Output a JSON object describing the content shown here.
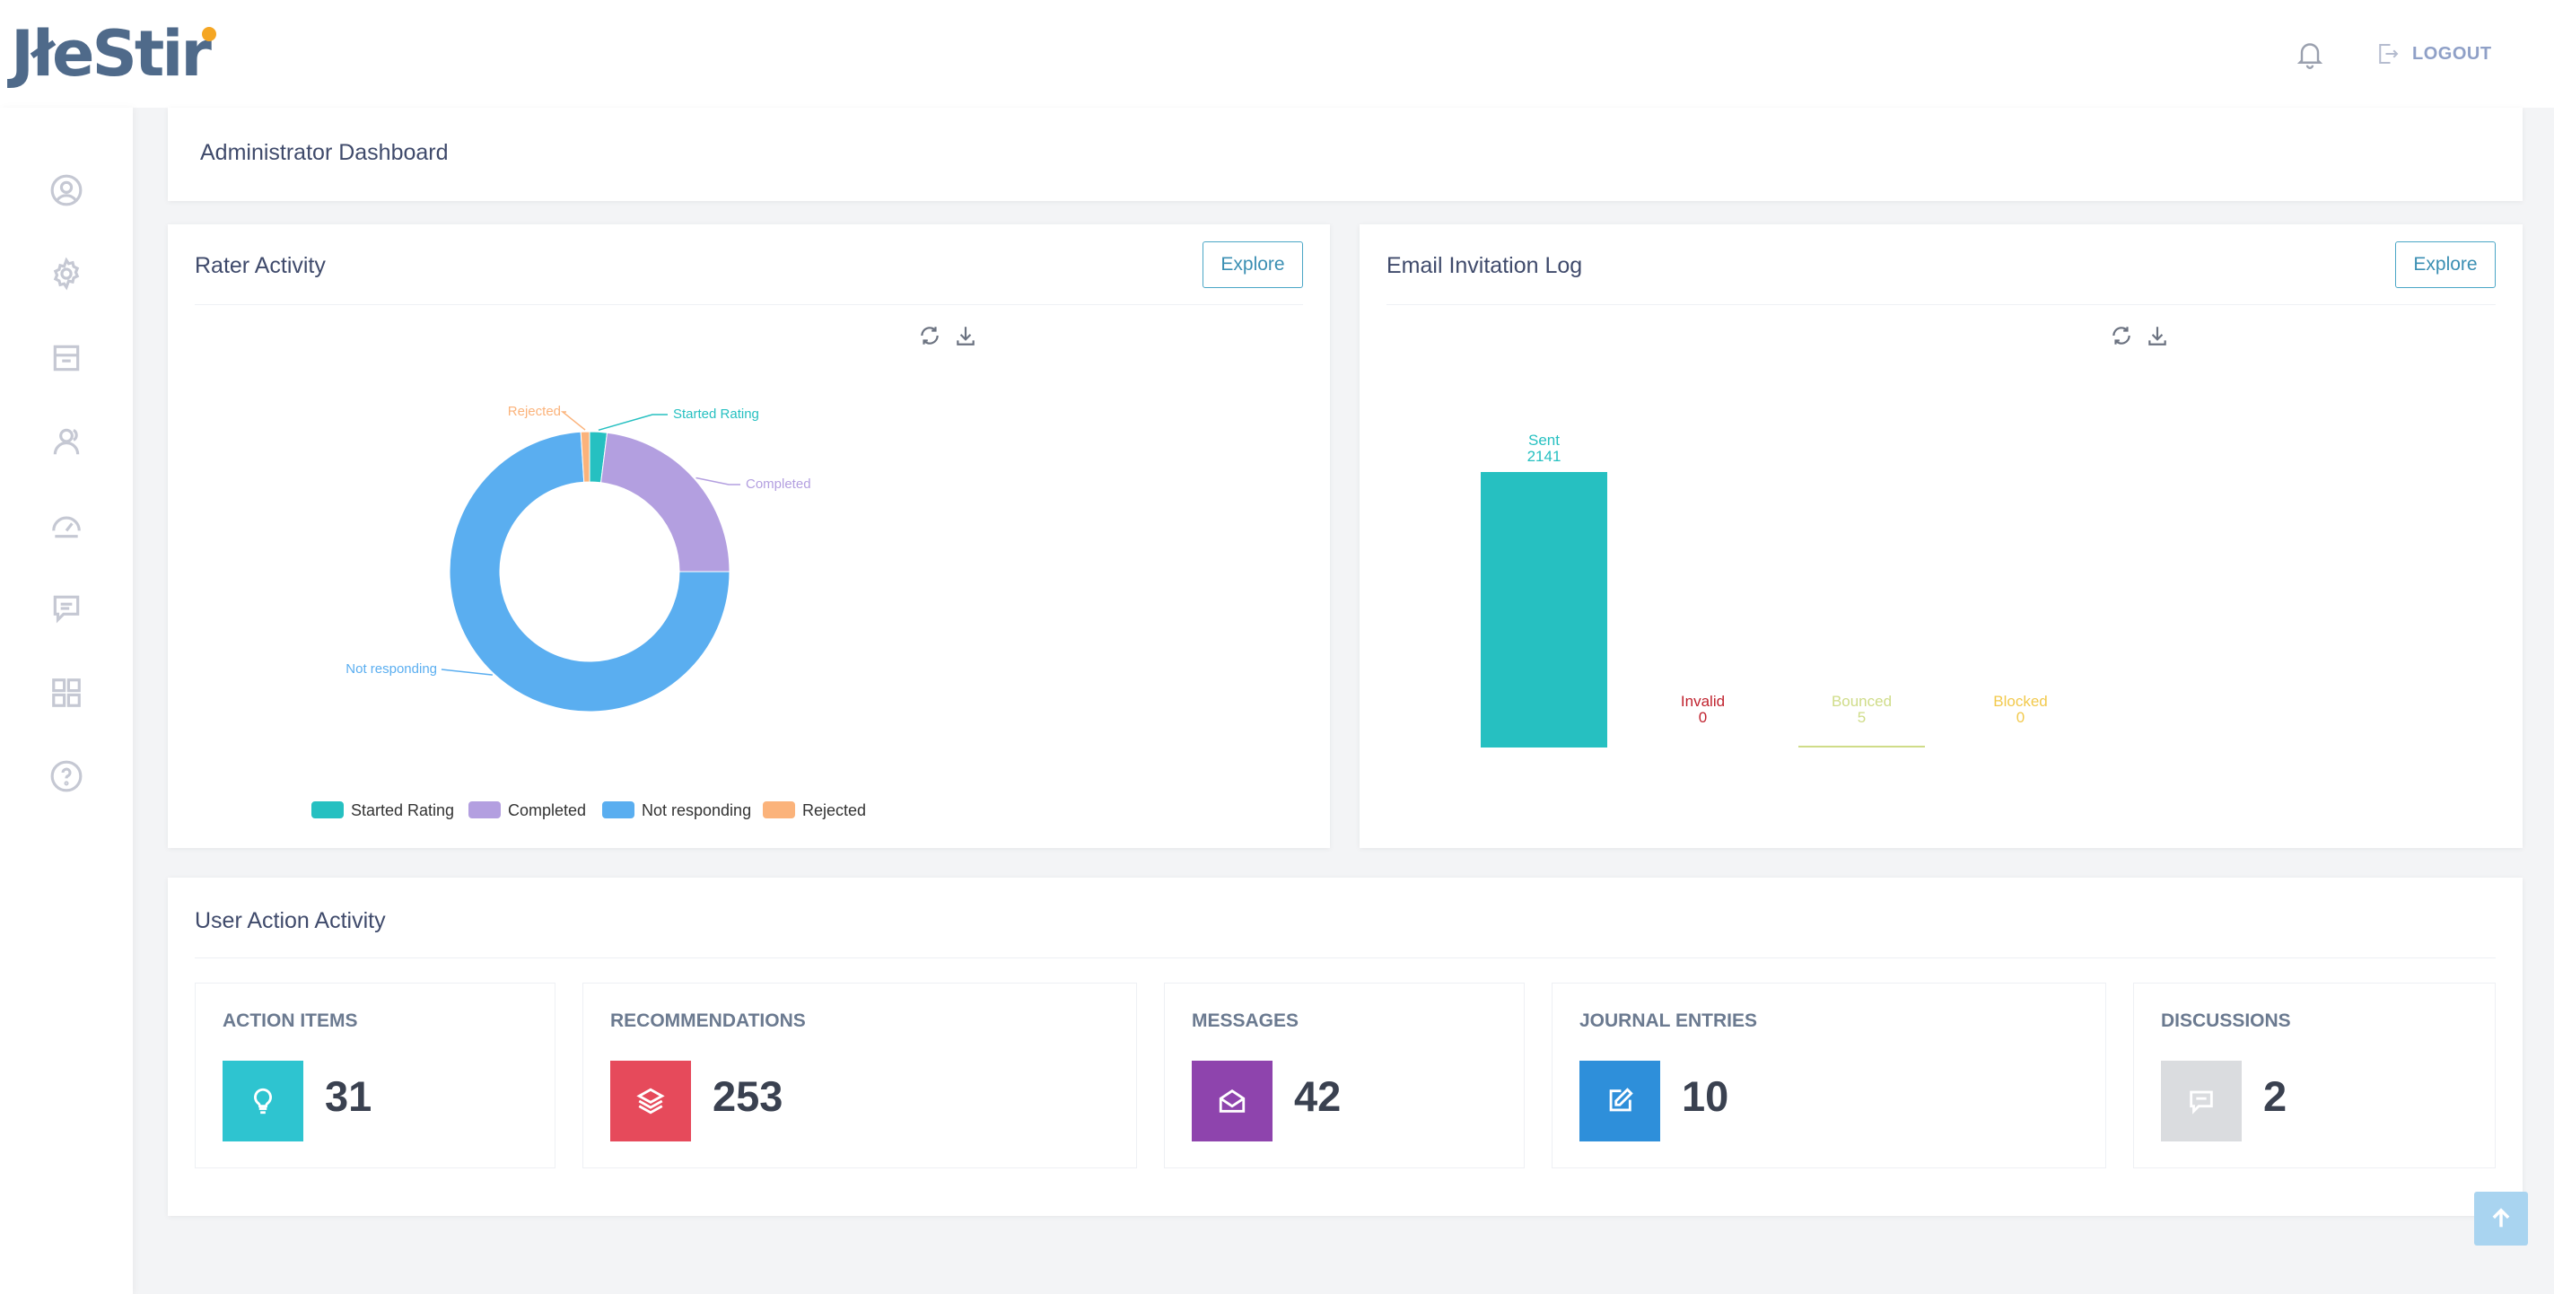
{
  "app": {
    "logo_text": "JłeStir"
  },
  "header": {
    "logout_label": "LOGOUT"
  },
  "page": {
    "title": "Administrator Dashboard"
  },
  "rater_activity": {
    "title": "Rater Activity",
    "explore_label": "Explore",
    "chart_data": {
      "type": "pie",
      "subtype": "donut",
      "labels": [
        "Started Rating",
        "Completed",
        "Not responding",
        "Rejected"
      ],
      "values": [
        2,
        23,
        74,
        1
      ],
      "colors": [
        "#26c0c1",
        "#b39fe0",
        "#5aaef0",
        "#fbb37b"
      ],
      "legend_position": "bottom"
    }
  },
  "email_log": {
    "title": "Email Invitation Log",
    "explore_label": "Explore",
    "chart_data": {
      "type": "bar",
      "categories": [
        "Sent",
        "Invalid",
        "Bounced",
        "Blocked"
      ],
      "values": [
        2141,
        0,
        5,
        0
      ],
      "value_labels": [
        "2141",
        "0",
        "5",
        "0"
      ],
      "colors": [
        "#26c0c1",
        "#c0222e",
        "#cfdc88",
        "#f2c94c"
      ],
      "ylim": [
        0,
        2141
      ]
    }
  },
  "user_activity": {
    "title": "User Action Activity",
    "stats": [
      {
        "label": "ACTION ITEMS",
        "value": "31",
        "color": "#2ec4d0",
        "icon": "lightbulb-icon"
      },
      {
        "label": "RECOMMENDATIONS",
        "value": "253",
        "color": "#e64a5b",
        "icon": "layers-icon"
      },
      {
        "label": "MESSAGES",
        "value": "42",
        "color": "#8e44ad",
        "icon": "envelope-open-icon"
      },
      {
        "label": "JOURNAL ENTRIES",
        "value": "10",
        "color": "#2e8fda",
        "icon": "edit-icon"
      },
      {
        "label": "DISCUSSIONS",
        "value": "2",
        "color": "#dadcdf",
        "icon": "chat-icon"
      }
    ]
  }
}
